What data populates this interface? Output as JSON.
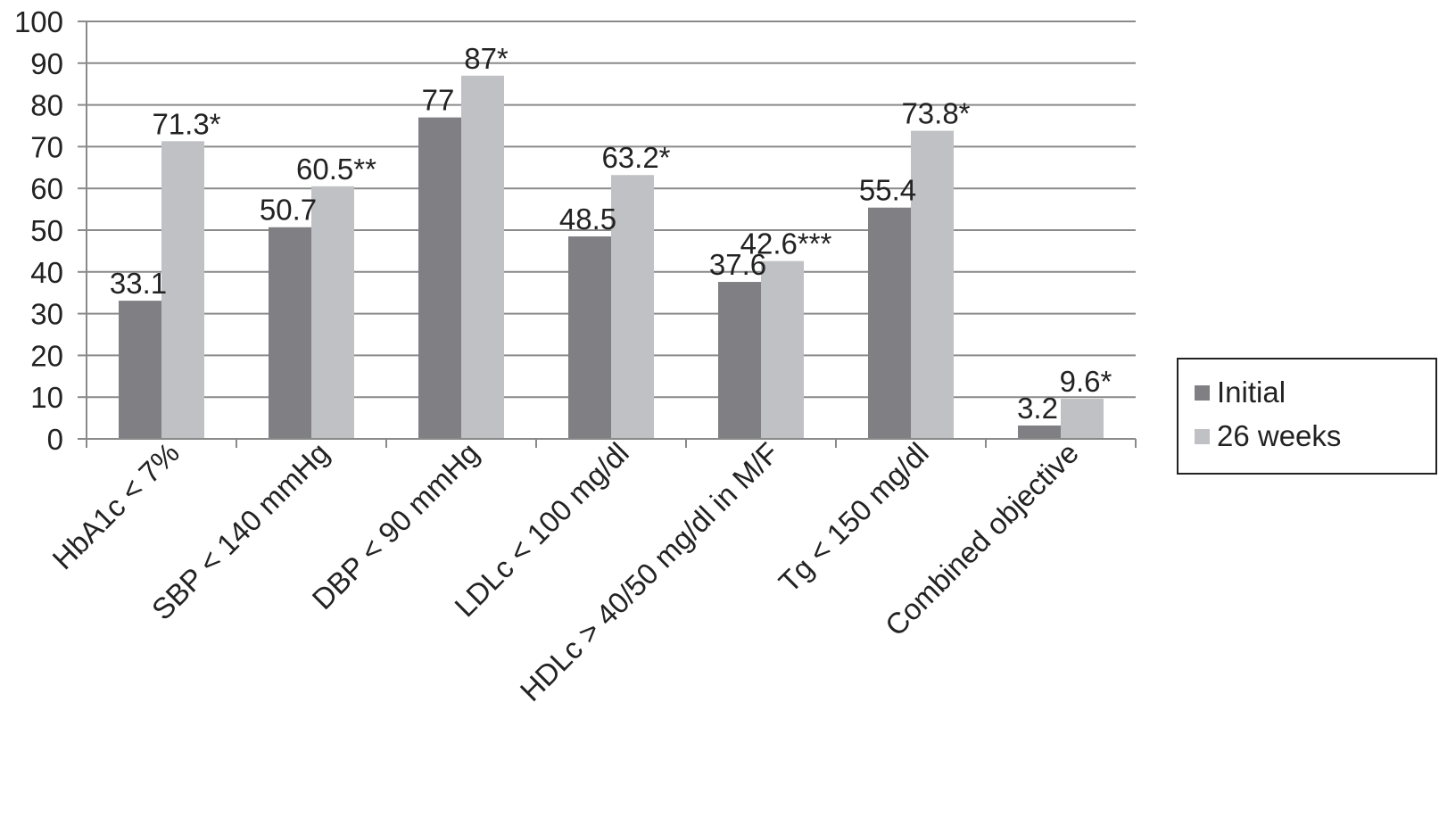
{
  "colors": {
    "initial": "#808084",
    "weeks26": "#c0c1c4",
    "grid": "#8a8a8a",
    "axis": "#8a8a8a"
  },
  "chart_data": {
    "type": "bar",
    "title": "",
    "xlabel": "",
    "ylabel": "",
    "ylim": [
      0,
      100
    ],
    "yticks": [
      "0",
      "10",
      "20",
      "30",
      "40",
      "50",
      "60",
      "70",
      "80",
      "90",
      "100"
    ],
    "grid": true,
    "legend_position": "right",
    "categories": [
      "HbA1c < 7%",
      "SBP < 140 mmHg",
      "DBP < 90 mmHg",
      "LDLc < 100 mg/dl",
      "HDLc > 40/50 mg/dl in M/F",
      "Tg < 150 mg/dl",
      "Combined objective"
    ],
    "series": [
      {
        "name": "Initial",
        "values": [
          33.1,
          50.7,
          77,
          48.5,
          37.6,
          55.4,
          3.2
        ],
        "labels": [
          "33.1",
          "50.7",
          "77",
          "48.5",
          "37.6",
          "55.4",
          "3.2"
        ]
      },
      {
        "name": "26 weeks",
        "values": [
          71.3,
          60.5,
          87,
          63.2,
          42.6,
          73.8,
          9.6
        ],
        "labels": [
          "71.3*",
          "60.5**",
          "87*",
          "63.2*",
          "42.6***",
          "73.8*",
          "9.6*"
        ]
      }
    ]
  }
}
